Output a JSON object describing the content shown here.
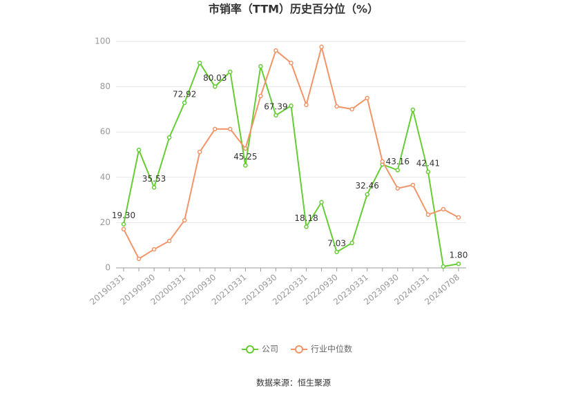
{
  "chart_data": {
    "type": "line",
    "title": "市销率（TTM）历史百分位（%）",
    "source": "数据来源：恒生聚源",
    "categories": [
      "20190331",
      null,
      "20190930",
      null,
      "20200331",
      null,
      "20200930",
      null,
      "20210331",
      null,
      "20210930",
      null,
      "20220331",
      null,
      "20220930",
      null,
      "20230331",
      null,
      "20230930",
      null,
      "20240331",
      null,
      "20240708"
    ],
    "series": [
      {
        "name": "公司",
        "color": "#66cc33",
        "values": [
          19.3,
          52.1,
          35.53,
          57.6,
          72.92,
          90.5,
          80.03,
          86.6,
          45.25,
          89.0,
          67.39,
          71.6,
          18.18,
          29.0,
          7.03,
          11.0,
          32.46,
          45.7,
          43.16,
          69.8,
          42.41,
          0.6,
          1.8
        ],
        "value_labels": [
          "19.30",
          null,
          "35.53",
          null,
          "72.92",
          null,
          "80.03",
          null,
          "45.25",
          null,
          "67.39",
          null,
          "18.18",
          null,
          "7.03",
          null,
          "32.46",
          null,
          "43.16",
          null,
          "42.41",
          null,
          "1.80"
        ]
      },
      {
        "name": "行业中位数",
        "color": "#f29467",
        "values": [
          17.1,
          4.0,
          8.2,
          11.9,
          21.0,
          51.2,
          61.3,
          61.3,
          52.7,
          75.9,
          96.0,
          90.5,
          72.0,
          97.6,
          71.3,
          70.1,
          75.0,
          47.0,
          35.1,
          36.6,
          23.5,
          25.9,
          22.3
        ]
      }
    ],
    "ylim": [
      0,
      100
    ],
    "yticks": [
      0,
      20,
      40,
      60,
      80,
      100
    ],
    "grid": true,
    "legend": "bottom"
  }
}
